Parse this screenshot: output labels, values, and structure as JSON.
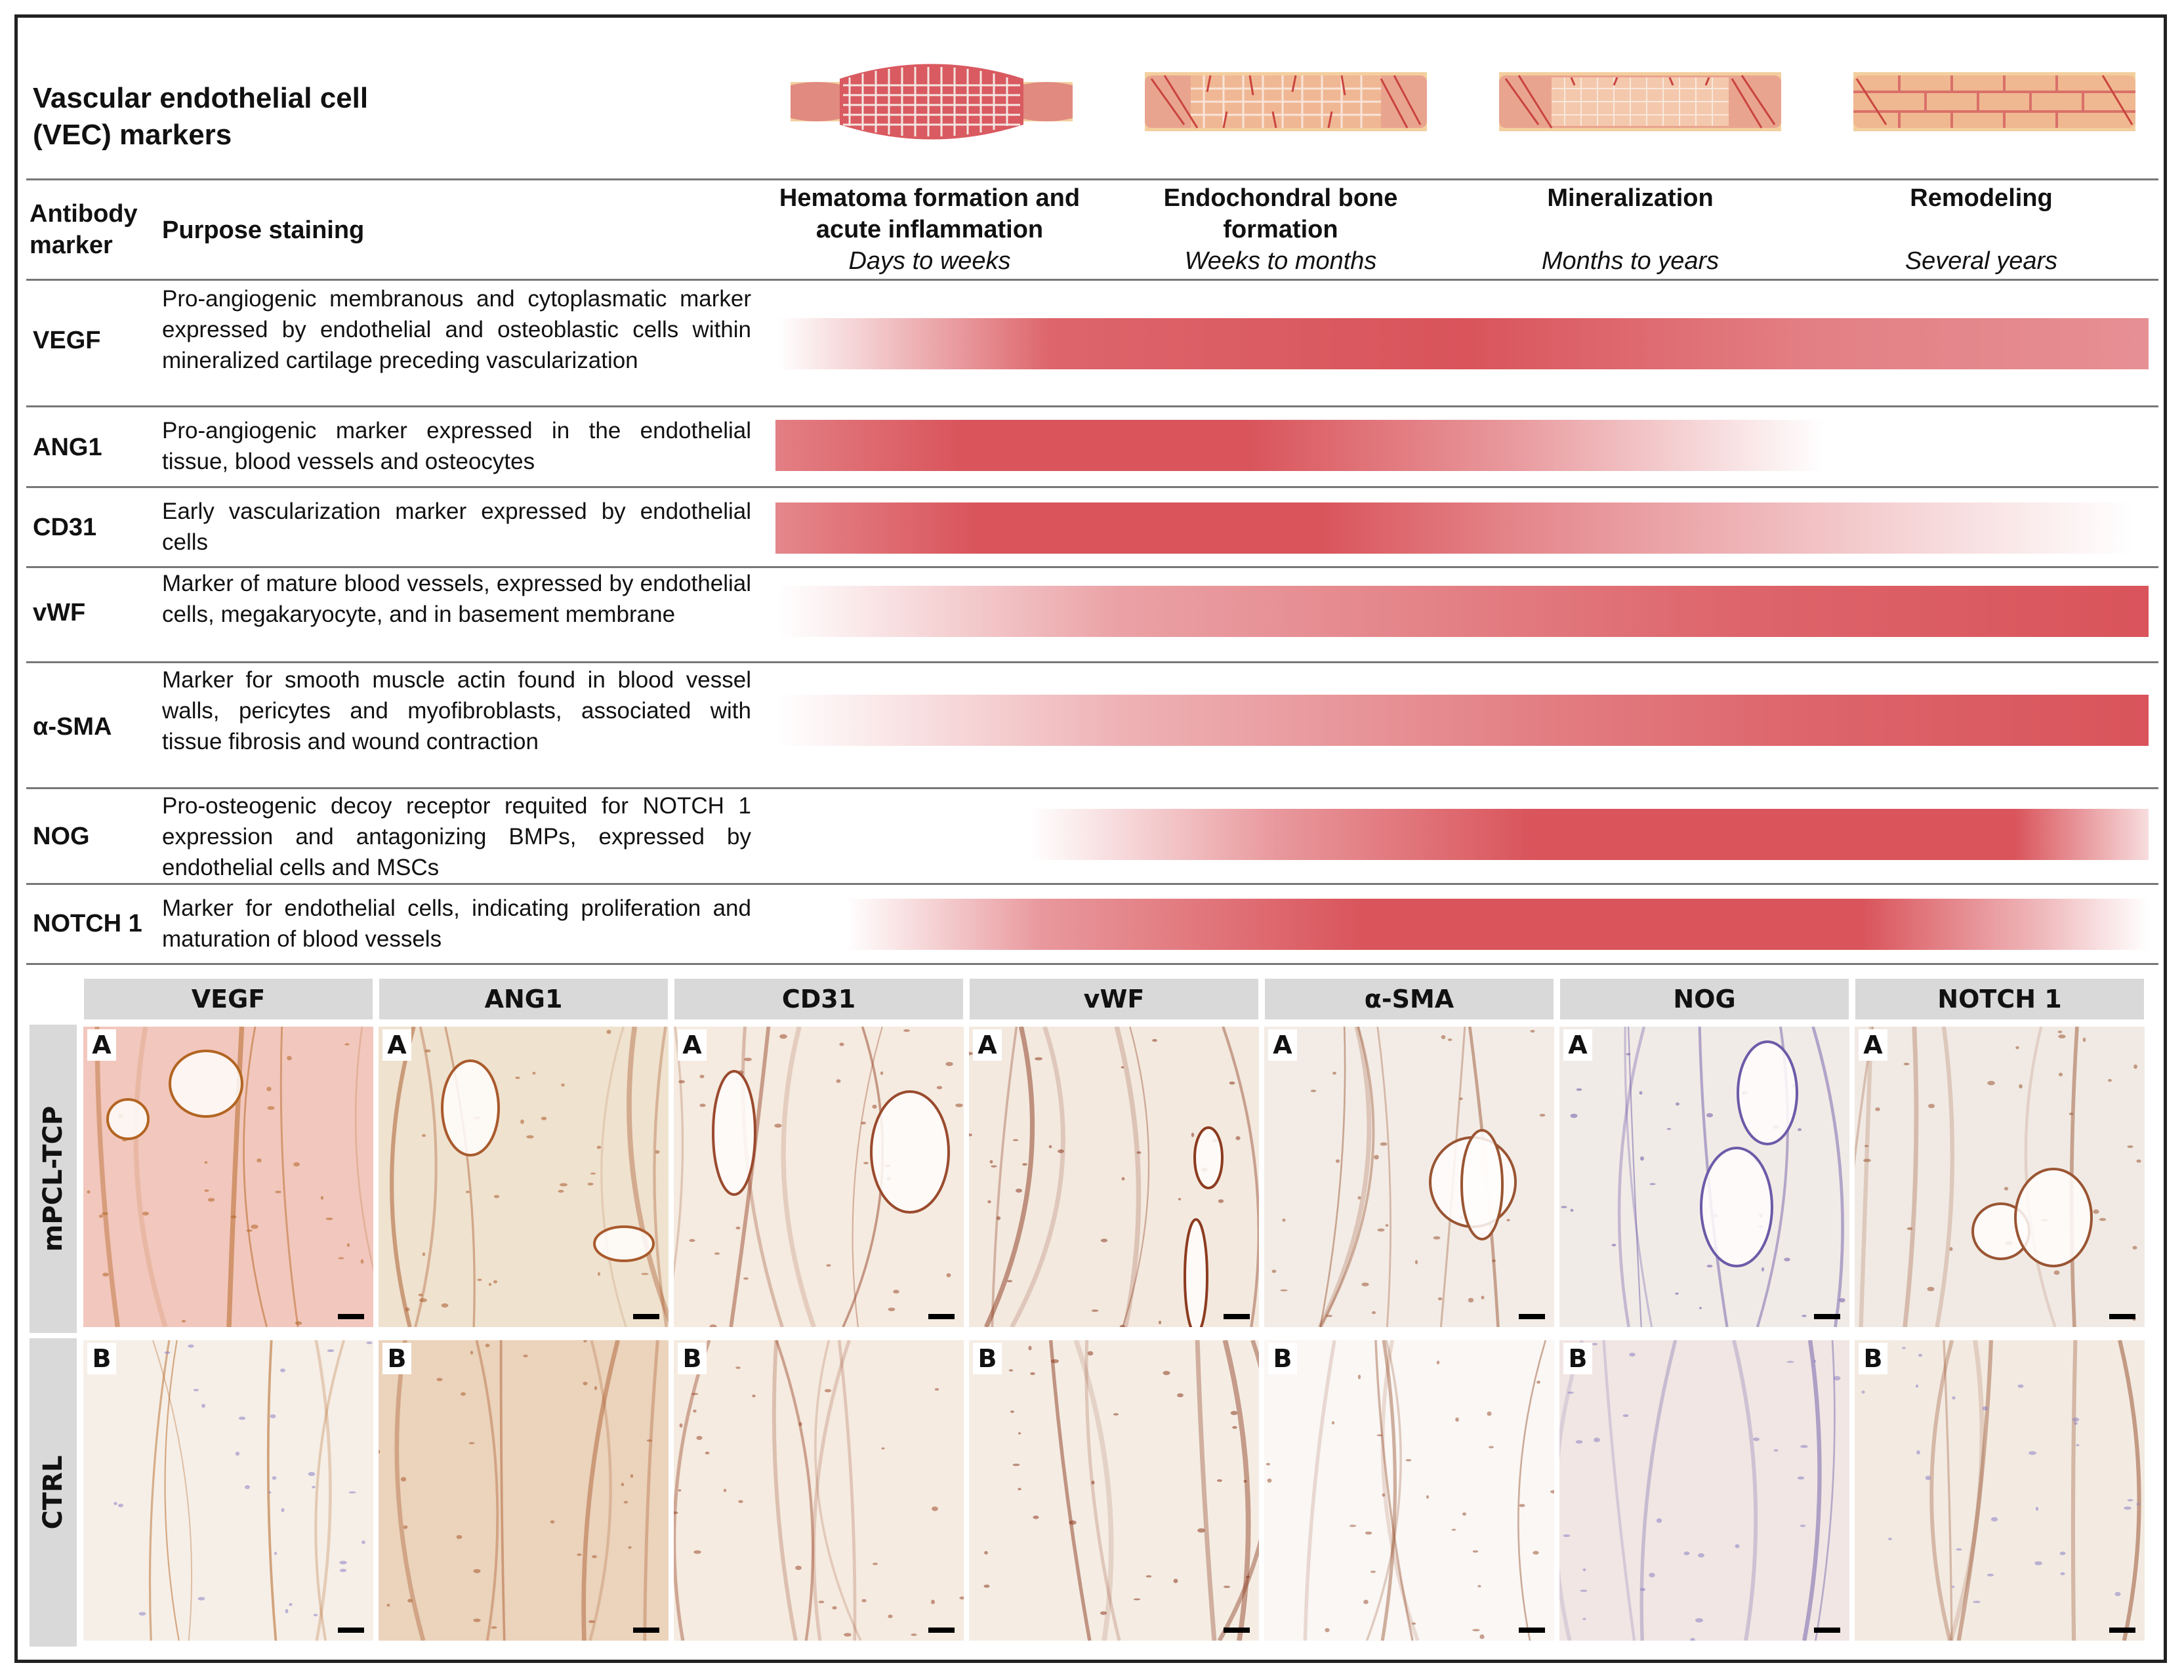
{
  "header": {
    "title_line1": "Vascular endothelial cell",
    "title_line2": "(VEC) markers"
  },
  "table_header": {
    "col1_line1": "Antibody",
    "col1_line2": "marker",
    "col2": "Purpose staining",
    "stages": [
      {
        "name_line1": "Hematoma formation and",
        "name_line2": "acute inflammation",
        "time": "Days to weeks"
      },
      {
        "name_line1": "Endochondral bone",
        "name_line2": "formation",
        "time": "Weeks to months"
      },
      {
        "name_line1": "Mineralization",
        "name_line2": "",
        "time": "Months to years"
      },
      {
        "name_line1": "Remodeling",
        "name_line2": "",
        "time": "Several years"
      }
    ]
  },
  "rows": [
    {
      "marker": "VEGF",
      "description": "Pro-angiogenic membranous and cytoplasmatic marker expressed by endothelial and osteoblastic cells within mineralized cartilage preceding vascularization"
    },
    {
      "marker": "ANG1",
      "description": "Pro-angiogenic marker expressed in the endothelial tissue, blood vessels and osteocytes"
    },
    {
      "marker": "CD31",
      "description": "Early vascularization marker expressed by endothelial cells"
    },
    {
      "marker": "vWF",
      "description": "Marker of mature blood vessels, expressed by endothelial cells, megakaryocyte, and in basement membrane"
    },
    {
      "marker": "α-SMA",
      "description": "Marker for smooth muscle actin found in blood vessel walls, pericytes and myofibroblasts, associated with tissue fibrosis and wound contraction"
    },
    {
      "marker": "NOG",
      "description": "Pro-osteogenic decoy receptor requited for NOTCH 1 expression and antagonizing BMPs, expressed by endothelial cells and MSCs"
    },
    {
      "marker": "NOTCH 1",
      "description": "Marker for endothelial cells, indicating proliferation and maturation of blood vessels"
    }
  ],
  "colors": {
    "bar_red": "#d9545b",
    "gray_label": "#d9d9d9",
    "tissue_red": "#d95a60",
    "bone_tan": "#f3cf9e"
  },
  "micro_panel": {
    "columns": [
      "VEGF",
      "ANG1",
      "CD31",
      "vWF",
      "α-SMA",
      "NOG",
      "NOTCH 1"
    ],
    "row_labels": [
      "mPCL-TCP",
      "CTRL"
    ],
    "panel_letters": [
      "A",
      "B"
    ]
  }
}
